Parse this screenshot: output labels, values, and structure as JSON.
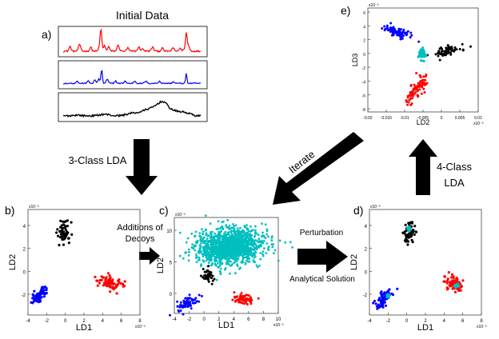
{
  "heading": "Initial Data",
  "panel_letters": {
    "a": "a)",
    "b": "b)",
    "c": "c)",
    "d": "d)",
    "e": "e)"
  },
  "step_labels": {
    "three_class": "3-Class LDA",
    "decoys_1": "Additions of",
    "decoys_2": "Decoys",
    "iterate": "Iterate",
    "four_class_1": "4-Class",
    "four_class_2": "LDA",
    "perturbation": "Perturbation",
    "analytical": "Analytical Solution"
  },
  "signal_colors": [
    "#ff0000",
    "#0000ff",
    "#000000"
  ],
  "class_colors": {
    "blue": "#0000ff",
    "black": "#000000",
    "red": "#ff0000",
    "decoy": "#00bfbf"
  },
  "scatter_b": {
    "exponent": "x10⁻³",
    "xlabel": "LD1",
    "ylabel": "LD2",
    "xticks": [
      "-4",
      "-2",
      "0",
      "2",
      "4",
      "6",
      "8"
    ],
    "yticks": [
      "4",
      "2",
      "0",
      "-2"
    ]
  },
  "scatter_c": {
    "exponent": "x10⁻³",
    "xlabel": "LD1",
    "ylabel": "LD2",
    "xticks": [
      "-4",
      "-2",
      "0",
      "2",
      "4",
      "6",
      "8",
      "10"
    ],
    "yticks": [
      "10",
      "5",
      "0"
    ]
  },
  "scatter_d": {
    "exponent": "x10⁻³",
    "xlabel": "LD1",
    "ylabel": "LD2",
    "xticks": [
      "-4",
      "-2",
      "0",
      "2",
      "4",
      "6",
      "8"
    ],
    "yticks": [
      "4",
      "2",
      "0",
      "-2"
    ]
  },
  "scatter_e": {
    "exponent": "x10⁻³",
    "xlabel": "LD2",
    "ylabel": "LD3",
    "xticks": [
      "-0.02",
      "-0.015",
      "-0.01",
      "-0.005",
      "0",
      "0.005",
      "0.01"
    ],
    "yticks": [
      "6",
      "4",
      "2",
      "0",
      "-2",
      "-4",
      "-6",
      "-8"
    ]
  }
}
